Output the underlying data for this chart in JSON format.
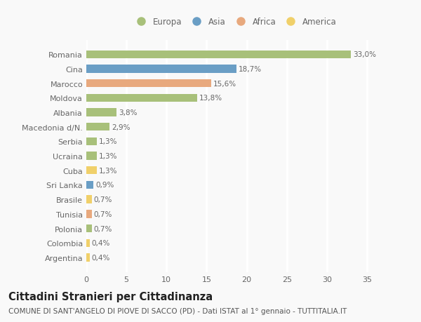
{
  "countries": [
    "Romania",
    "Cina",
    "Marocco",
    "Moldova",
    "Albania",
    "Macedonia d/N.",
    "Serbia",
    "Ucraina",
    "Cuba",
    "Sri Lanka",
    "Brasile",
    "Tunisia",
    "Polonia",
    "Colombia",
    "Argentina"
  ],
  "values": [
    33.0,
    18.7,
    15.6,
    13.8,
    3.8,
    2.9,
    1.3,
    1.3,
    1.3,
    0.9,
    0.7,
    0.7,
    0.7,
    0.4,
    0.4
  ],
  "labels": [
    "33,0%",
    "18,7%",
    "15,6%",
    "13,8%",
    "3,8%",
    "2,9%",
    "1,3%",
    "1,3%",
    "1,3%",
    "0,9%",
    "0,7%",
    "0,7%",
    "0,7%",
    "0,4%",
    "0,4%"
  ],
  "continents": [
    "Europa",
    "Asia",
    "Africa",
    "Europa",
    "Europa",
    "Europa",
    "Europa",
    "Europa",
    "America",
    "Asia",
    "America",
    "Africa",
    "Europa",
    "America",
    "America"
  ],
  "continent_colors": {
    "Europa": "#a8c07a",
    "Asia": "#6a9ec5",
    "Africa": "#e8a97e",
    "America": "#f0d06a"
  },
  "legend_order": [
    "Europa",
    "Asia",
    "Africa",
    "America"
  ],
  "title": "Cittadini Stranieri per Cittadinanza",
  "subtitle": "COMUNE DI SANT'ANGELO DI PIOVE DI SACCO (PD) - Dati ISTAT al 1° gennaio - TUTTITALIA.IT",
  "xlim": [
    0,
    37
  ],
  "xticks": [
    0,
    5,
    10,
    15,
    20,
    25,
    30,
    35
  ],
  "background_color": "#f9f9f9",
  "grid_color": "#ffffff",
  "bar_height": 0.55,
  "title_fontsize": 10.5,
  "subtitle_fontsize": 7.5,
  "label_fontsize": 7.5,
  "tick_fontsize": 8,
  "legend_fontsize": 8.5
}
